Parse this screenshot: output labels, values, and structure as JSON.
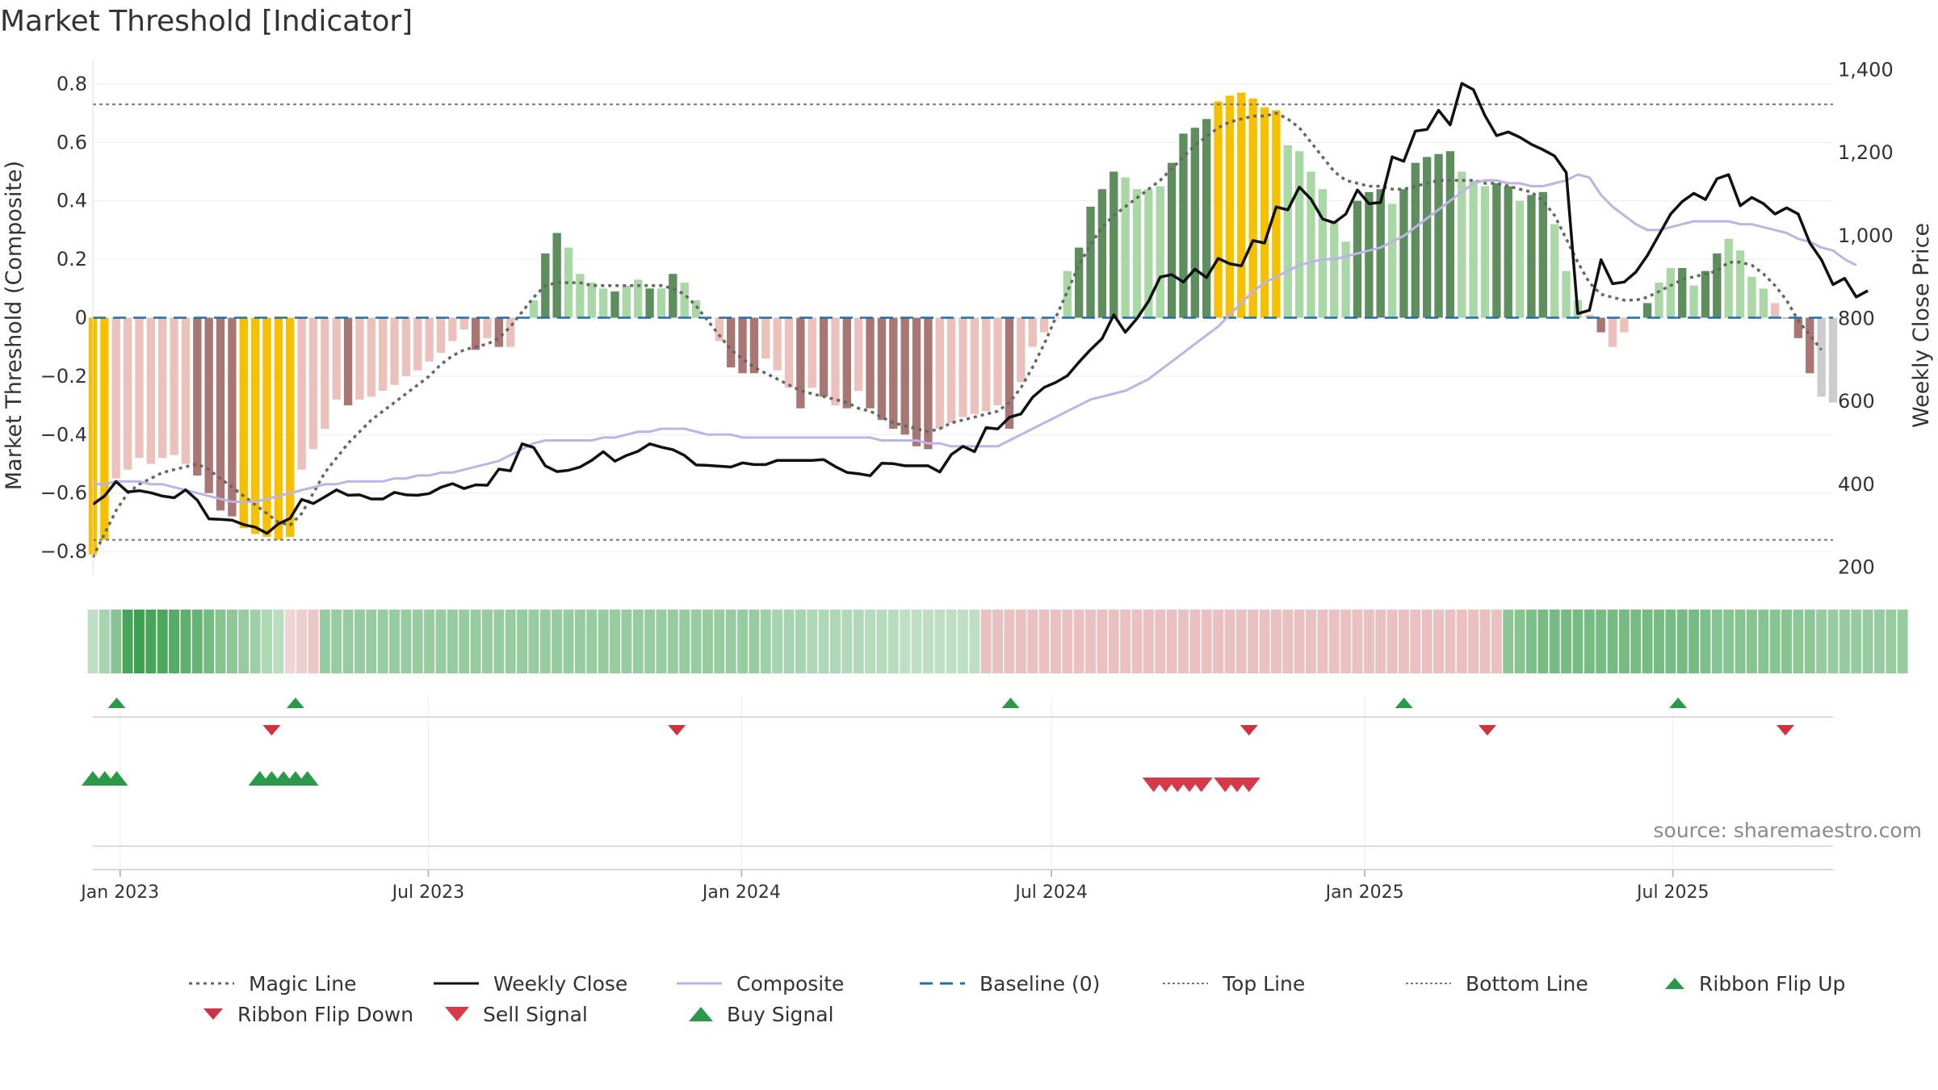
{
  "title": "Market Threshold [Indicator]",
  "source": "source: sharemaestro.com",
  "colors": {
    "magic": "#666666",
    "close": "#111111",
    "composite": "#bdb3e8",
    "baseline": "#1f6fa8",
    "threshold": "#777777",
    "extreme_bar": "#f5c000",
    "buy": "#2a9a48",
    "sell": "#d63a48",
    "ribbon_down": "#d0323f"
  },
  "chart_data": {
    "type": "bar",
    "x_ticks": [
      "Jan 2023",
      "Jul 2023",
      "Jan 2024",
      "Jul 2024",
      "Jan 2025",
      "Jul 2025"
    ],
    "x_range": [
      "2022-12-16",
      "2025-10-03"
    ],
    "left_axis": {
      "label": "Market Threshold (Composite)",
      "range": [
        -0.88,
        0.88
      ],
      "ticks": [
        "0.8",
        "0.6",
        "0.4",
        "0.2",
        "0",
        "−0.2",
        "−0.4",
        "−0.6",
        "−0.8"
      ],
      "tick_values": [
        0.8,
        0.6,
        0.4,
        0.2,
        0,
        -0.2,
        -0.4,
        -0.6,
        -0.8
      ]
    },
    "right_axis": {
      "label": "Weekly Close Price",
      "range": [
        180,
        1420
      ],
      "ticks": [
        "1,400",
        "1,200",
        "1,000",
        "800",
        "600",
        "400",
        "200"
      ],
      "tick_values": [
        1400,
        1200,
        1000,
        800,
        600,
        400,
        200
      ]
    },
    "top_line": 0.73,
    "bottom_line": -0.76,
    "baseline": 0,
    "bars": [
      -0.81,
      -0.76,
      -0.55,
      -0.52,
      -0.48,
      -0.5,
      -0.48,
      -0.47,
      -0.5,
      -0.54,
      -0.6,
      -0.66,
      -0.68,
      -0.72,
      -0.74,
      -0.75,
      -0.76,
      -0.75,
      -0.52,
      -0.45,
      -0.38,
      -0.28,
      -0.3,
      -0.28,
      -0.27,
      -0.25,
      -0.23,
      -0.2,
      -0.18,
      -0.15,
      -0.12,
      -0.08,
      -0.04,
      -0.11,
      -0.07,
      -0.1,
      -0.1,
      0,
      0.06,
      0.22,
      0.29,
      0.24,
      0.15,
      0.12,
      0.1,
      0.09,
      0.11,
      0.13,
      0.1,
      0.1,
      0.15,
      0.12,
      0.06,
      0,
      -0.08,
      -0.17,
      -0.19,
      -0.19,
      -0.14,
      -0.18,
      -0.24,
      -0.31,
      -0.24,
      -0.27,
      -0.3,
      -0.31,
      -0.25,
      -0.31,
      -0.35,
      -0.38,
      -0.4,
      -0.44,
      -0.45,
      -0.38,
      -0.36,
      -0.34,
      -0.33,
      -0.32,
      -0.3,
      -0.38,
      -0.22,
      -0.1,
      -0.05,
      0,
      0.16,
      0.24,
      0.38,
      0.44,
      0.5,
      0.48,
      0.44,
      0.44,
      0.45,
      0.53,
      0.63,
      0.65,
      0.68,
      0.74,
      0.76,
      0.77,
      0.75,
      0.72,
      0.71,
      0.59,
      0.57,
      0.5,
      0.44,
      0.33,
      0.26,
      0.4,
      0.43,
      0.44,
      0.39,
      0.44,
      0.53,
      0.55,
      0.56,
      0.57,
      0.5,
      0.47,
      0.45,
      0.46,
      0.45,
      0.4,
      0.42,
      0.43,
      0.32,
      0.16,
      0.06,
      0.01,
      -0.05,
      -0.1,
      -0.05,
      0,
      0.05,
      0.12,
      0.17,
      0.17,
      0.11,
      0.16,
      0.22,
      0.27,
      0.23,
      0.14,
      0.1,
      0.05,
      0,
      -0.07,
      -0.19,
      -0.27,
      -0.29
    ],
    "bar_categories": [
      "yellow",
      "yellow",
      "lightred",
      "lightred",
      "lightred",
      "lightred",
      "lightred",
      "lightred",
      "lightred",
      "darkred",
      "darkred",
      "darkred",
      "darkred",
      "yellow",
      "yellow",
      "yellow",
      "yellow",
      "yellow",
      "lightred",
      "lightred",
      "lightred",
      "lightred",
      "darkred",
      "lightred",
      "lightred",
      "lightred",
      "lightred",
      "lightred",
      "lightred",
      "lightred",
      "lightred",
      "lightred",
      "lightred",
      "darkred",
      "lightred",
      "darkred",
      "lightred",
      "lightred",
      "lightgreen",
      "darkgreen",
      "darkgreen",
      "lightgreen",
      "lightgreen",
      "lightgreen",
      "lightgreen",
      "darkgreen",
      "lightgreen",
      "lightgreen",
      "darkgreen",
      "lightgreen",
      "darkgreen",
      "lightgreen",
      "lightgreen",
      "lightgreen",
      "lightred",
      "darkred",
      "darkred",
      "darkred",
      "lightred",
      "lightred",
      "lightred",
      "darkred",
      "lightred",
      "darkred",
      "lightred",
      "darkred",
      "lightred",
      "darkred",
      "darkred",
      "darkred",
      "darkred",
      "darkred",
      "darkred",
      "lightred",
      "lightred",
      "lightred",
      "lightred",
      "lightred",
      "lightred",
      "darkred",
      "lightred",
      "lightred",
      "lightred",
      "lightred",
      "lightgreen",
      "darkgreen",
      "darkgreen",
      "darkgreen",
      "darkgreen",
      "lightgreen",
      "lightgreen",
      "lightgreen",
      "lightgreen",
      "darkgreen",
      "darkgreen",
      "darkgreen",
      "darkgreen",
      "yellow",
      "yellow",
      "yellow",
      "yellow",
      "yellow",
      "yellow",
      "lightgreen",
      "lightgreen",
      "lightgreen",
      "lightgreen",
      "lightgreen",
      "lightgreen",
      "darkgreen",
      "darkgreen",
      "darkgreen",
      "lightgreen",
      "darkgreen",
      "darkgreen",
      "darkgreen",
      "darkgreen",
      "darkgreen",
      "lightgreen",
      "lightgreen",
      "lightgreen",
      "darkgreen",
      "darkgreen",
      "lightgreen",
      "darkgreen",
      "darkgreen",
      "lightgreen",
      "lightgreen",
      "lightgreen",
      "lightred",
      "darkred",
      "lightred",
      "lightred",
      "lightgreen",
      "darkgreen",
      "lightgreen",
      "lightgreen",
      "darkgreen",
      "lightgreen",
      "darkgreen",
      "darkgreen",
      "lightgreen",
      "lightgreen",
      "lightgreen",
      "lightgreen",
      "lightred",
      "darkred",
      "darkred",
      "darkred"
    ],
    "series": [
      {
        "name": "Magic Line",
        "axis": "left",
        "values": [
          -0.82,
          -0.74,
          -0.66,
          -0.6,
          -0.57,
          -0.55,
          -0.53,
          -0.52,
          -0.51,
          -0.5,
          -0.52,
          -0.55,
          -0.58,
          -0.61,
          -0.64,
          -0.67,
          -0.7,
          -0.71,
          -0.67,
          -0.6,
          -0.53,
          -0.48,
          -0.43,
          -0.39,
          -0.35,
          -0.32,
          -0.29,
          -0.26,
          -0.23,
          -0.2,
          -0.16,
          -0.13,
          -0.11,
          -0.1,
          -0.09,
          -0.07,
          -0.03,
          0.02,
          0.07,
          0.11,
          0.12,
          0.12,
          0.12,
          0.11,
          0.11,
          0.11,
          0.11,
          0.11,
          0.11,
          0.11,
          0.1,
          0.08,
          0.04,
          -0.01,
          -0.06,
          -0.11,
          -0.14,
          -0.17,
          -0.19,
          -0.21,
          -0.23,
          -0.25,
          -0.26,
          -0.27,
          -0.28,
          -0.29,
          -0.31,
          -0.32,
          -0.34,
          -0.36,
          -0.37,
          -0.38,
          -0.39,
          -0.38,
          -0.36,
          -0.35,
          -0.34,
          -0.33,
          -0.32,
          -0.29,
          -0.24,
          -0.17,
          -0.09,
          0.0,
          0.09,
          0.18,
          0.25,
          0.31,
          0.35,
          0.38,
          0.41,
          0.44,
          0.47,
          0.51,
          0.55,
          0.59,
          0.62,
          0.65,
          0.67,
          0.68,
          0.69,
          0.69,
          0.7,
          0.68,
          0.65,
          0.6,
          0.55,
          0.5,
          0.47,
          0.46,
          0.45,
          0.45,
          0.44,
          0.44,
          0.45,
          0.46,
          0.47,
          0.47,
          0.47,
          0.47,
          0.46,
          0.46,
          0.45,
          0.44,
          0.43,
          0.4,
          0.35,
          0.27,
          0.19,
          0.12,
          0.08,
          0.07,
          0.06,
          0.06,
          0.07,
          0.09,
          0.11,
          0.13,
          0.14,
          0.15,
          0.16,
          0.19,
          0.19,
          0.18,
          0.15,
          0.11,
          0.06,
          -0.01,
          -0.06,
          -0.11
        ]
      },
      {
        "name": "Weekly Close",
        "axis": "right",
        "values": [
          350,
          370,
          405,
          380,
          383,
          378,
          370,
          366,
          385,
          360,
          315,
          314,
          312,
          301,
          295,
          280,
          303,
          316,
          362,
          352,
          368,
          385,
          372,
          373,
          363,
          363,
          379,
          373,
          372,
          376,
          391,
          400,
          388,
          397,
          396,
          435,
          431,
          496,
          487,
          443,
          429,
          432,
          440,
          456,
          477,
          454,
          468,
          478,
          496,
          488,
          482,
          468,
          445,
          444,
          442,
          440,
          450,
          446,
          446,
          456,
          456,
          456,
          456,
          458,
          441,
          427,
          424,
          419,
          449,
          448,
          443,
          443,
          443,
          428,
          470,
          490,
          477,
          535,
          532,
          560,
          568,
          608,
          632,
          644,
          660,
          693,
          723,
          750,
          807,
          765,
          798,
          840,
          898,
          904,
          886,
          917,
          897,
          943,
          930,
          925,
          986,
          980,
          1067,
          1060,
          1115,
          1086,
          1038,
          1029,
          1050,
          1108,
          1075,
          1078,
          1188,
          1177,
          1250,
          1254,
          1300,
          1265,
          1365,
          1350,
          1287,
          1239,
          1248,
          1235,
          1218,
          1205,
          1190,
          1150,
          810,
          818,
          940,
          882,
          886,
          910,
          950,
          1000,
          1050,
          1080,
          1100,
          1085,
          1135,
          1145,
          1070,
          1090,
          1075,
          1050,
          1065,
          1050,
          980,
          940,
          880,
          895,
          850,
          865
        ]
      },
      {
        "name": "Composite",
        "axis": "left",
        "values": [
          -0.57,
          -0.57,
          -0.56,
          -0.56,
          -0.56,
          -0.57,
          -0.57,
          -0.58,
          -0.59,
          -0.6,
          -0.61,
          -0.62,
          -0.63,
          -0.63,
          -0.63,
          -0.62,
          -0.61,
          -0.6,
          -0.59,
          -0.58,
          -0.57,
          -0.57,
          -0.56,
          -0.56,
          -0.56,
          -0.56,
          -0.55,
          -0.55,
          -0.54,
          -0.54,
          -0.53,
          -0.53,
          -0.52,
          -0.51,
          -0.5,
          -0.49,
          -0.47,
          -0.45,
          -0.43,
          -0.42,
          -0.42,
          -0.42,
          -0.42,
          -0.42,
          -0.41,
          -0.41,
          -0.4,
          -0.39,
          -0.39,
          -0.38,
          -0.38,
          -0.38,
          -0.39,
          -0.4,
          -0.4,
          -0.4,
          -0.41,
          -0.41,
          -0.41,
          -0.41,
          -0.41,
          -0.41,
          -0.41,
          -0.41,
          -0.41,
          -0.41,
          -0.41,
          -0.41,
          -0.42,
          -0.42,
          -0.42,
          -0.42,
          -0.43,
          -0.43,
          -0.44,
          -0.44,
          -0.44,
          -0.44,
          -0.44,
          -0.42,
          -0.4,
          -0.38,
          -0.36,
          -0.34,
          -0.32,
          -0.3,
          -0.28,
          -0.27,
          -0.26,
          -0.25,
          -0.23,
          -0.21,
          -0.18,
          -0.15,
          -0.12,
          -0.09,
          -0.06,
          -0.03,
          0.01,
          0.05,
          0.09,
          0.12,
          0.14,
          0.16,
          0.18,
          0.19,
          0.2,
          0.2,
          0.21,
          0.22,
          0.23,
          0.24,
          0.26,
          0.28,
          0.31,
          0.34,
          0.37,
          0.4,
          0.43,
          0.46,
          0.47,
          0.47,
          0.46,
          0.46,
          0.45,
          0.45,
          0.46,
          0.47,
          0.49,
          0.48,
          0.42,
          0.38,
          0.35,
          0.32,
          0.3,
          0.3,
          0.31,
          0.32,
          0.33,
          0.33,
          0.33,
          0.33,
          0.32,
          0.32,
          0.31,
          0.3,
          0.29,
          0.27,
          0.26,
          0.24,
          0.23,
          0.2,
          0.18
        ]
      }
    ],
    "ribbon": [
      0.2,
      0.35,
      0.55,
      0.95,
      1.0,
      0.95,
      0.9,
      0.85,
      0.8,
      0.75,
      0.65,
      0.55,
      0.5,
      0.45,
      0.4,
      0.3,
      0.22,
      -0.15,
      -0.2,
      -0.25,
      0.45,
      0.45,
      0.45,
      0.45,
      0.45,
      0.45,
      0.45,
      0.45,
      0.45,
      0.45,
      0.45,
      0.45,
      0.45,
      0.45,
      0.45,
      0.45,
      0.45,
      0.45,
      0.45,
      0.45,
      0.45,
      0.45,
      0.45,
      0.45,
      0.45,
      0.45,
      0.45,
      0.45,
      0.45,
      0.45,
      0.45,
      0.45,
      0.45,
      0.45,
      0.45,
      0.45,
      0.45,
      0.45,
      0.4,
      0.35,
      0.35,
      0.35,
      0.3,
      0.3,
      0.3,
      0.28,
      0.28,
      0.25,
      0.25,
      0.25,
      0.2,
      0.2,
      0.2,
      0.2,
      0.2,
      0.2,
      0.2,
      -0.3,
      -0.3,
      -0.3,
      -0.3,
      -0.3,
      -0.3,
      -0.3,
      -0.3,
      -0.3,
      -0.3,
      -0.3,
      -0.3,
      -0.3,
      -0.3,
      -0.3,
      -0.3,
      -0.3,
      -0.3,
      -0.3,
      -0.3,
      -0.3,
      -0.3,
      -0.3,
      -0.3,
      -0.3,
      -0.3,
      -0.3,
      -0.3,
      -0.3,
      -0.3,
      -0.3,
      -0.3,
      -0.3,
      -0.3,
      -0.3,
      -0.3,
      -0.3,
      -0.3,
      -0.3,
      -0.3,
      -0.3,
      -0.3,
      -0.3,
      -0.3,
      -0.3,
      0.5,
      0.55,
      0.6,
      0.65,
      0.65,
      0.65,
      0.65,
      0.65,
      0.65,
      0.65,
      0.65,
      0.65,
      0.65,
      0.65,
      0.65,
      0.65,
      0.65,
      0.6,
      0.55,
      0.55,
      0.55,
      0.55,
      0.55,
      0.55,
      0.55,
      0.5,
      0.5,
      0.45,
      0.45,
      0.45,
      0.45,
      0.45,
      0.45,
      0.45,
      0.45
    ],
    "ribbon_flip_up": [
      "2022-12-30",
      "2023-04-14",
      "2024-06-07",
      "2025-01-24",
      "2025-07-04"
    ],
    "ribbon_flip_down": [
      "2023-03-31",
      "2023-11-24",
      "2024-10-25",
      "2025-03-14",
      "2025-09-05"
    ],
    "buy_signals": [
      "2022-12-16",
      "2022-12-23",
      "2022-12-30",
      "2023-03-24",
      "2023-03-31",
      "2023-04-07",
      "2023-04-14",
      "2023-04-21"
    ],
    "sell_signals": [
      "2024-08-30",
      "2024-09-06",
      "2024-09-13",
      "2024-09-20",
      "2024-09-27",
      "2024-10-11",
      "2024-10-18",
      "2024-10-25"
    ]
  },
  "legend": [
    {
      "label": "Magic Line",
      "marker": "dotted-line",
      "color": "#666666"
    },
    {
      "label": "Weekly Close",
      "marker": "solid-line",
      "color": "#111111"
    },
    {
      "label": "Composite",
      "marker": "solid-line",
      "color": "#bdb3e8"
    },
    {
      "label": "Baseline (0)",
      "marker": "dashed-line",
      "color": "#1f6fa8"
    },
    {
      "label": "Top Line",
      "marker": "fine-dotted-line",
      "color": "#777777"
    },
    {
      "label": "Bottom Line",
      "marker": "fine-dotted-line",
      "color": "#777777"
    },
    {
      "label": "Ribbon Flip Up",
      "marker": "triangle-up",
      "color": "#2a9a48"
    },
    {
      "label": "Ribbon Flip Down",
      "marker": "triangle-down",
      "color": "#d0323f"
    },
    {
      "label": "Sell Signal",
      "marker": "triangle-down-large",
      "color": "#d63a48"
    },
    {
      "label": "Buy Signal",
      "marker": "triangle-up-large",
      "color": "#2a9a48"
    }
  ]
}
